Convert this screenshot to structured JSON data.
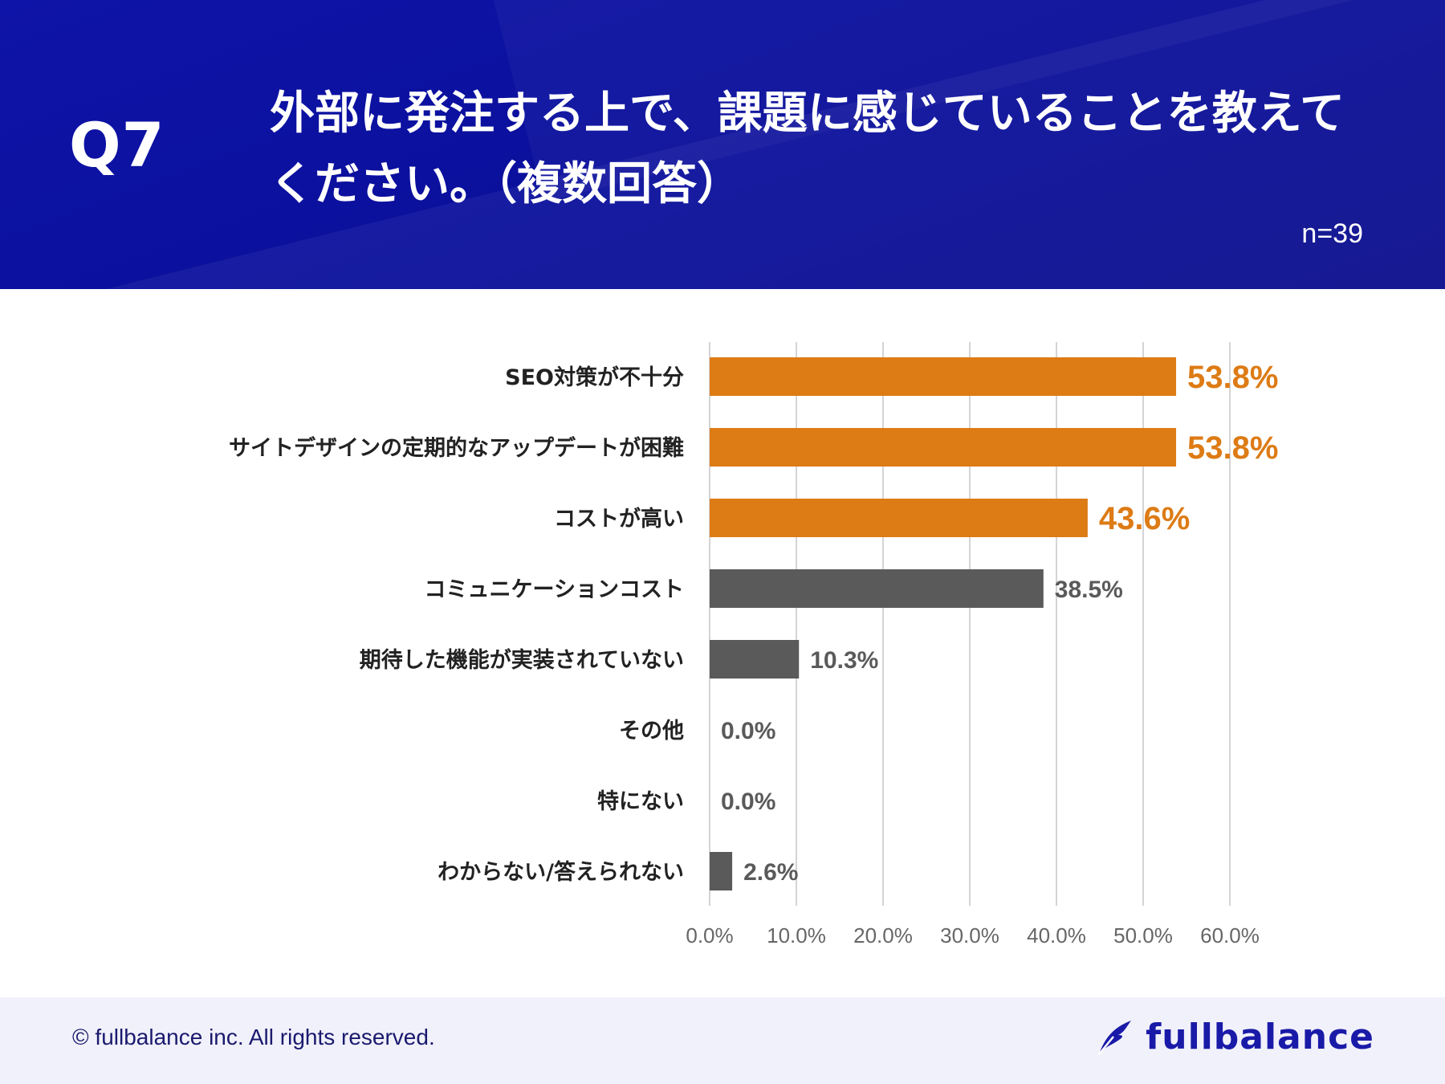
{
  "header": {
    "question_number": "Q7",
    "title": "外部に発注する上で、課題に感じていることを教えてください。（複数回答）",
    "sample_size": "n=39"
  },
  "colors": {
    "header_bg": "#0a0f9a",
    "highlight": "#dd7b15",
    "normal": "#5a5a5a",
    "brand": "#1a1aa8"
  },
  "chart_data": {
    "type": "bar",
    "orientation": "horizontal",
    "categories": [
      "SEO対策が不十分",
      "サイトデザインの定期的なアップデートが困難",
      "コストが高い",
      "コミュニケーションコスト",
      "期待した機能が実装されていない",
      "その他",
      "特にない",
      "わからない/答えられない"
    ],
    "values": [
      53.8,
      53.8,
      43.6,
      38.5,
      10.3,
      0.0,
      0.0,
      2.6
    ],
    "value_labels": [
      "53.8%",
      "53.8%",
      "43.6%",
      "38.5%",
      "10.3%",
      "0.0%",
      "0.0%",
      "2.6%"
    ],
    "highlighted": [
      true,
      true,
      true,
      false,
      false,
      false,
      false,
      false
    ],
    "xlim": [
      0,
      60
    ],
    "ticks": [
      0,
      10,
      20,
      30,
      40,
      50,
      60
    ],
    "tick_labels": [
      "0.0%",
      "10.0%",
      "20.0%",
      "30.0%",
      "40.0%",
      "50.0%",
      "60.0%"
    ],
    "grid": true,
    "title": "",
    "xlabel": "",
    "ylabel": ""
  },
  "footer": {
    "copyright": "© fullbalance inc. All rights reserved.",
    "brand": "fullbalance"
  }
}
